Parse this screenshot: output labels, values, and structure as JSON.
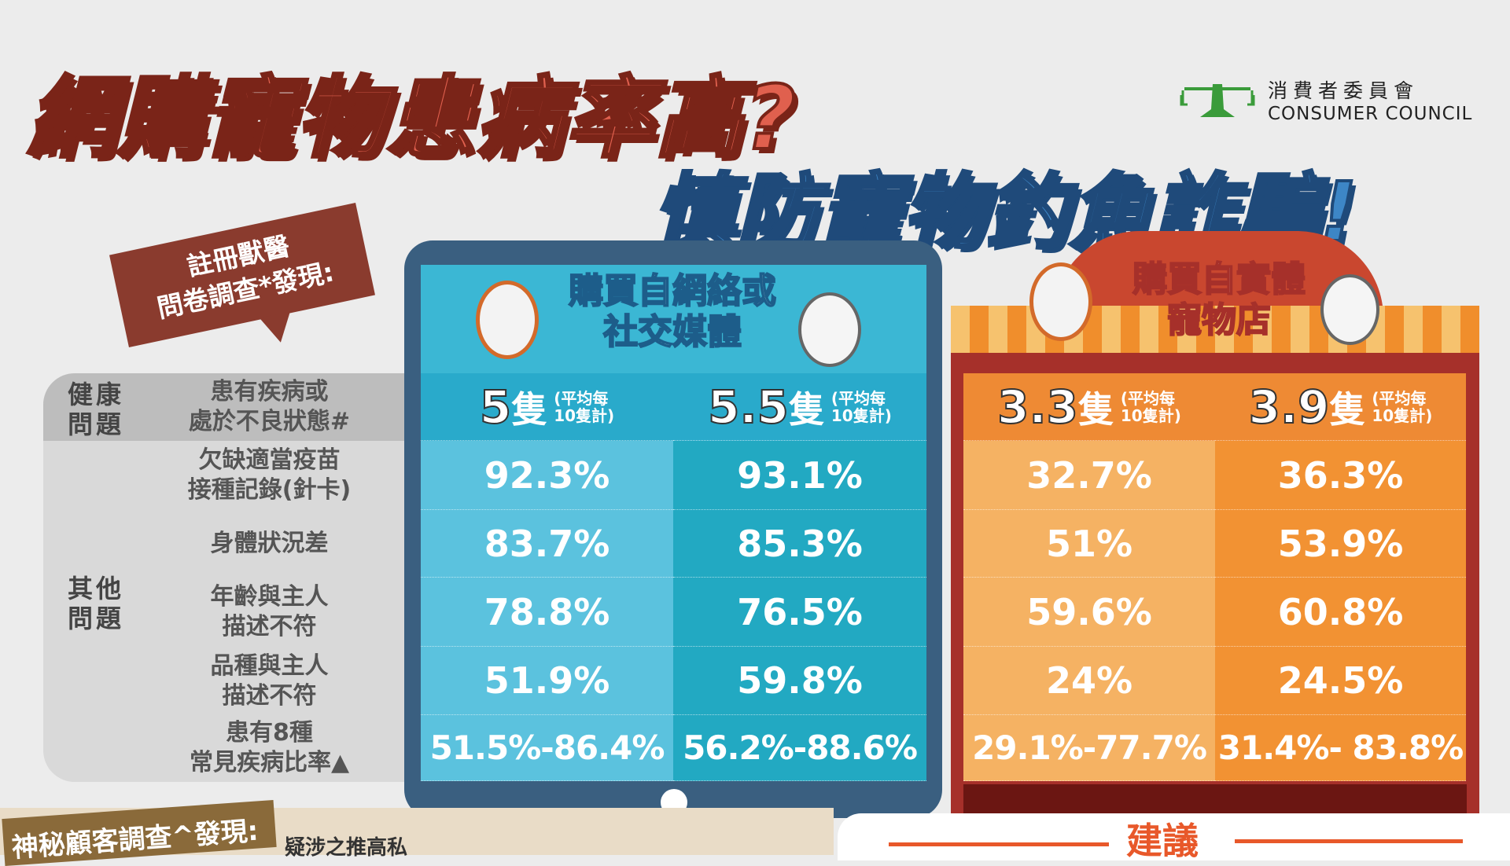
{
  "title": {
    "line1": "網購寵物患病率高?",
    "line2": "慎防寵物釣魚詐騙!"
  },
  "logo": {
    "zh": "消費者委員會",
    "en": "CONSUMER COUNCIL",
    "color": "#3a9b3a"
  },
  "survey_tag": {
    "line1": "註冊獸醫",
    "line2": "問卷調查*發現:"
  },
  "online": {
    "title_line1": "購買自網絡或",
    "title_line2": "社交媒體",
    "colors": [
      "#5bc2de",
      "#22a9c2"
    ]
  },
  "store": {
    "title_line1": "購買自實體",
    "title_line2": "寵物店",
    "colors": [
      "#f5b263",
      "#f29233"
    ]
  },
  "groups": {
    "health": "健康問題",
    "other": "其他問題"
  },
  "header_row": {
    "label_line1": "患有疾病或",
    "label_line2": "處於不良狀態#",
    "cells": [
      {
        "count": "5",
        "unit": "隻",
        "note1": "(平均每",
        "note2": "10隻計)"
      },
      {
        "count": "5.5",
        "unit": "隻",
        "note1": "(平均每",
        "note2": "10隻計)"
      },
      {
        "count": "3.3",
        "unit": "隻",
        "note1": "(平均每",
        "note2": "10隻計)"
      },
      {
        "count": "3.9",
        "unit": "隻",
        "note1": "(平均每",
        "note2": "10隻計)"
      }
    ]
  },
  "rows": [
    {
      "label_line1": "欠缺適當疫苗",
      "label_line2": "接種記錄(針卡)",
      "values": [
        "92.3%",
        "93.1%",
        "32.7%",
        "36.3%"
      ]
    },
    {
      "label_line1": "身體狀況差",
      "label_line2": "",
      "values": [
        "83.7%",
        "85.3%",
        "51%",
        "53.9%"
      ]
    },
    {
      "label_line1": "年齡與主人",
      "label_line2": "描述不符",
      "values": [
        "78.8%",
        "76.5%",
        "59.6%",
        "60.8%"
      ]
    },
    {
      "label_line1": "品種與主人",
      "label_line2": "描述不符",
      "values": [
        "51.9%",
        "59.8%",
        "24%",
        "24.5%"
      ]
    },
    {
      "label_line1": "患有8種",
      "label_line2": "常見疾病比率▲",
      "values": [
        "51.5%-86.4%",
        "56.2%-88.6%",
        "29.1%-77.7%",
        "31.4%- 83.8%"
      ]
    }
  ],
  "bottom": {
    "mystery_tag": "神秘顧客調查^發現:",
    "partial_text": "疑涉之推高私",
    "advice": "建議"
  }
}
